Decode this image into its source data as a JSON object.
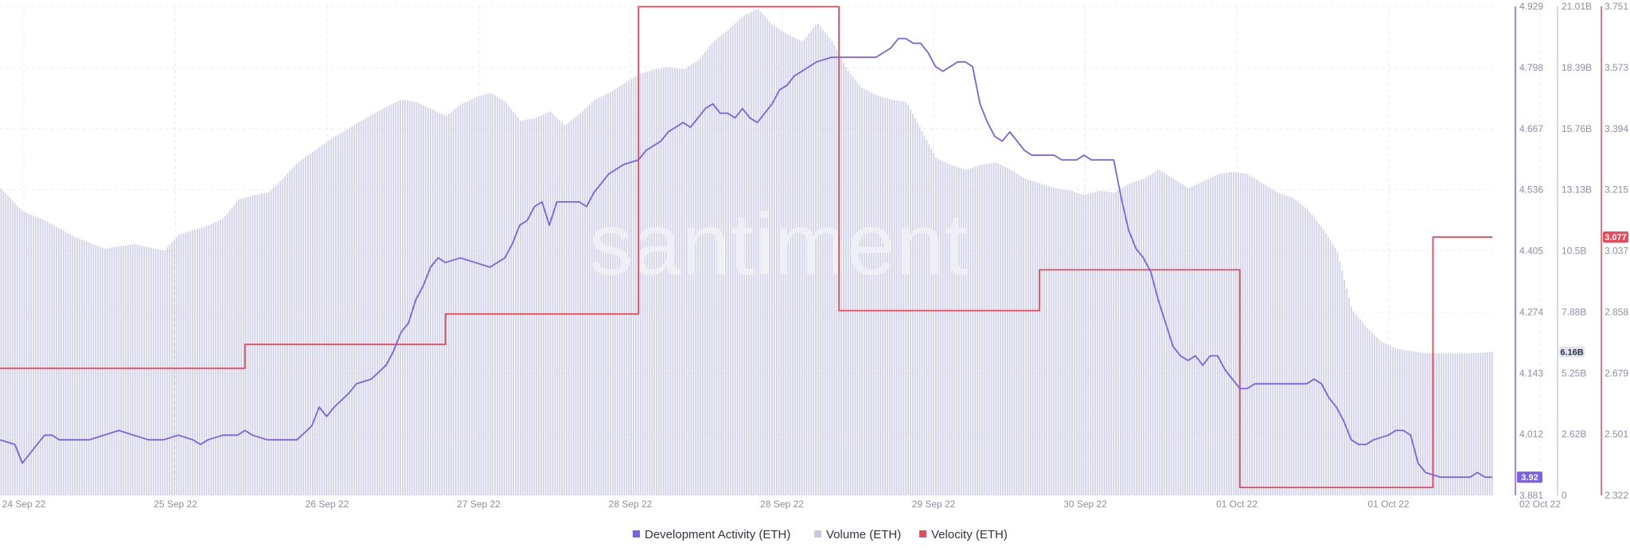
{
  "watermark": "santiment",
  "chart_data": {
    "type": "line",
    "x_labels": [
      "24 Sep 22",
      "25 Sep 22",
      "26 Sep 22",
      "27 Sep 22",
      "28 Sep 22",
      "28 Sep 22",
      "29 Sep 22",
      "30 Sep 22",
      "01 Oct 22",
      "01 Oct 22",
      "02 Oct 22"
    ],
    "axes": {
      "dev": {
        "ticks": [
          "4.929",
          "4.798",
          "4.667",
          "4.536",
          "4.405",
          "4.274",
          "4.143",
          "4.012",
          "3.881"
        ],
        "range": [
          3.881,
          4.929
        ],
        "color": "#7b61e6"
      },
      "volume": {
        "ticks": [
          "21.01B",
          "18.39B",
          "15.76B",
          "13.13B",
          "10.5B",
          "7.88B",
          "5.25B",
          "2.62B",
          "0"
        ],
        "range": [
          0,
          21.01
        ],
        "unit": "B",
        "color": "#c7cae6"
      },
      "velocity": {
        "ticks": [
          "3.751",
          "3.573",
          "3.394",
          "3.215",
          "3.037",
          "2.858",
          "2.679",
          "2.501",
          "2.322"
        ],
        "range": [
          2.322,
          3.751
        ],
        "color": "#e84a57"
      }
    },
    "current_values": {
      "dev": "3.92",
      "volume": "6.16B",
      "velocity": "3.077"
    },
    "series": [
      {
        "name": "Development Activity (ETH)",
        "axis": "dev",
        "color": "#7b61e6",
        "points": [
          [
            0,
            4.0
          ],
          [
            2,
            3.99
          ],
          [
            3,
            3.95
          ],
          [
            4,
            3.97
          ],
          [
            5,
            3.99
          ],
          [
            6,
            4.01
          ],
          [
            7,
            4.01
          ],
          [
            8,
            4.0
          ],
          [
            10,
            4.0
          ],
          [
            12,
            4.0
          ],
          [
            14,
            4.01
          ],
          [
            16,
            4.02
          ],
          [
            18,
            4.01
          ],
          [
            20,
            4.0
          ],
          [
            22,
            4.0
          ],
          [
            24,
            4.01
          ],
          [
            26,
            4.0
          ],
          [
            27,
            3.99
          ],
          [
            28,
            4.0
          ],
          [
            30,
            4.01
          ],
          [
            32,
            4.01
          ],
          [
            33,
            4.02
          ],
          [
            34,
            4.01
          ],
          [
            36,
            4.0
          ],
          [
            38,
            4.0
          ],
          [
            40,
            4.0
          ],
          [
            42,
            4.03
          ],
          [
            43,
            4.07
          ],
          [
            44,
            4.05
          ],
          [
            45,
            4.07
          ],
          [
            47,
            4.1
          ],
          [
            48,
            4.12
          ],
          [
            50,
            4.13
          ],
          [
            52,
            4.16
          ],
          [
            53,
            4.19
          ],
          [
            54,
            4.23
          ],
          [
            55,
            4.25
          ],
          [
            56,
            4.3
          ],
          [
            57,
            4.33
          ],
          [
            58,
            4.37
          ],
          [
            59,
            4.39
          ],
          [
            60,
            4.38
          ],
          [
            62,
            4.39
          ],
          [
            64,
            4.38
          ],
          [
            66,
            4.37
          ],
          [
            67,
            4.38
          ],
          [
            68,
            4.39
          ],
          [
            69,
            4.42
          ],
          [
            70,
            4.46
          ],
          [
            71,
            4.47
          ],
          [
            72,
            4.5
          ],
          [
            73,
            4.51
          ],
          [
            74,
            4.46
          ],
          [
            75,
            4.51
          ],
          [
            76,
            4.51
          ],
          [
            78,
            4.51
          ],
          [
            79,
            4.5
          ],
          [
            80,
            4.53
          ],
          [
            81,
            4.55
          ],
          [
            82,
            4.57
          ],
          [
            83,
            4.58
          ],
          [
            84,
            4.59
          ],
          [
            86,
            4.6
          ],
          [
            87,
            4.62
          ],
          [
            89,
            4.64
          ],
          [
            90,
            4.66
          ],
          [
            92,
            4.68
          ],
          [
            93,
            4.67
          ],
          [
            94,
            4.69
          ],
          [
            95,
            4.71
          ],
          [
            96,
            4.72
          ],
          [
            97,
            4.7
          ],
          [
            98,
            4.7
          ],
          [
            99,
            4.69
          ],
          [
            100,
            4.71
          ],
          [
            101,
            4.69
          ],
          [
            102,
            4.68
          ],
          [
            103,
            4.7
          ],
          [
            104,
            4.72
          ],
          [
            105,
            4.75
          ],
          [
            106,
            4.76
          ],
          [
            107,
            4.78
          ],
          [
            108,
            4.79
          ],
          [
            110,
            4.81
          ],
          [
            112,
            4.82
          ],
          [
            114,
            4.82
          ],
          [
            116,
            4.82
          ],
          [
            118,
            4.82
          ],
          [
            119,
            4.83
          ],
          [
            120,
            4.84
          ],
          [
            121,
            4.86
          ],
          [
            122,
            4.86
          ],
          [
            123,
            4.85
          ],
          [
            124,
            4.85
          ],
          [
            125,
            4.83
          ],
          [
            126,
            4.8
          ],
          [
            127,
            4.79
          ],
          [
            128,
            4.8
          ],
          [
            129,
            4.81
          ],
          [
            130,
            4.81
          ],
          [
            131,
            4.8
          ],
          [
            132,
            4.72
          ],
          [
            133,
            4.68
          ],
          [
            134,
            4.65
          ],
          [
            135,
            4.64
          ],
          [
            136,
            4.66
          ],
          [
            137,
            4.64
          ],
          [
            138,
            4.62
          ],
          [
            139,
            4.61
          ],
          [
            140,
            4.61
          ],
          [
            142,
            4.61
          ],
          [
            143,
            4.6
          ],
          [
            145,
            4.6
          ],
          [
            146,
            4.61
          ],
          [
            147,
            4.6
          ],
          [
            148,
            4.6
          ],
          [
            150,
            4.6
          ],
          [
            151,
            4.52
          ],
          [
            152,
            4.45
          ],
          [
            153,
            4.41
          ],
          [
            154,
            4.39
          ],
          [
            155,
            4.36
          ],
          [
            156,
            4.3
          ],
          [
            157,
            4.25
          ],
          [
            158,
            4.2
          ],
          [
            159,
            4.18
          ],
          [
            160,
            4.17
          ],
          [
            161,
            4.18
          ],
          [
            162,
            4.16
          ],
          [
            163,
            4.18
          ],
          [
            164,
            4.18
          ],
          [
            165,
            4.15
          ],
          [
            166,
            4.13
          ],
          [
            167,
            4.11
          ],
          [
            168,
            4.11
          ],
          [
            169,
            4.12
          ],
          [
            170,
            4.12
          ],
          [
            172,
            4.12
          ],
          [
            174,
            4.12
          ],
          [
            176,
            4.12
          ],
          [
            177,
            4.13
          ],
          [
            178,
            4.12
          ],
          [
            179,
            4.09
          ],
          [
            180,
            4.07
          ],
          [
            181,
            4.04
          ],
          [
            182,
            4.0
          ],
          [
            183,
            3.99
          ],
          [
            184,
            3.99
          ],
          [
            185,
            4.0
          ],
          [
            187,
            4.01
          ],
          [
            188,
            4.02
          ],
          [
            189,
            4.02
          ],
          [
            190,
            4.01
          ],
          [
            191,
            3.95
          ],
          [
            192,
            3.93
          ],
          [
            194,
            3.92
          ],
          [
            196,
            3.92
          ],
          [
            198,
            3.92
          ],
          [
            199,
            3.93
          ],
          [
            200,
            3.92
          ],
          [
            201,
            3.92
          ]
        ]
      },
      {
        "name": "Volume (ETH)",
        "axis": "volume",
        "color": "#c7cae6",
        "points": [
          [
            0,
            13.2
          ],
          [
            3,
            12.2
          ],
          [
            6,
            11.8
          ],
          [
            10,
            11.1
          ],
          [
            14,
            10.6
          ],
          [
            18,
            10.8
          ],
          [
            22,
            10.5
          ],
          [
            24,
            11.2
          ],
          [
            28,
            11.6
          ],
          [
            30,
            11.9
          ],
          [
            32,
            12.7
          ],
          [
            34,
            12.9
          ],
          [
            36,
            13.0
          ],
          [
            38,
            13.6
          ],
          [
            40,
            14.3
          ],
          [
            44,
            15.2
          ],
          [
            48,
            16.0
          ],
          [
            52,
            16.7
          ],
          [
            54,
            17.0
          ],
          [
            56,
            16.9
          ],
          [
            58,
            16.6
          ],
          [
            60,
            16.3
          ],
          [
            62,
            16.8
          ],
          [
            64,
            17.1
          ],
          [
            66,
            17.3
          ],
          [
            68,
            16.9
          ],
          [
            70,
            16.1
          ],
          [
            72,
            16.2
          ],
          [
            74,
            16.5
          ],
          [
            76,
            15.9
          ],
          [
            78,
            16.4
          ],
          [
            80,
            17.0
          ],
          [
            82,
            17.3
          ],
          [
            84,
            17.7
          ],
          [
            86,
            18.1
          ],
          [
            88,
            18.3
          ],
          [
            90,
            18.4
          ],
          [
            92,
            18.3
          ],
          [
            94,
            18.7
          ],
          [
            96,
            19.5
          ],
          [
            98,
            20.0
          ],
          [
            100,
            20.6
          ],
          [
            102,
            20.9
          ],
          [
            104,
            20.2
          ],
          [
            106,
            19.8
          ],
          [
            108,
            19.5
          ],
          [
            110,
            20.3
          ],
          [
            112,
            19.5
          ],
          [
            114,
            18.3
          ],
          [
            116,
            17.5
          ],
          [
            118,
            17.2
          ],
          [
            120,
            17.0
          ],
          [
            122,
            16.9
          ],
          [
            124,
            15.7
          ],
          [
            126,
            14.5
          ],
          [
            128,
            14.2
          ],
          [
            130,
            14.0
          ],
          [
            132,
            14.2
          ],
          [
            134,
            14.3
          ],
          [
            136,
            14.0
          ],
          [
            138,
            13.6
          ],
          [
            140,
            13.4
          ],
          [
            142,
            13.2
          ],
          [
            144,
            13.1
          ],
          [
            146,
            12.9
          ],
          [
            148,
            13.1
          ],
          [
            150,
            13.0
          ],
          [
            152,
            13.4
          ],
          [
            154,
            13.6
          ],
          [
            156,
            14.0
          ],
          [
            158,
            13.6
          ],
          [
            160,
            13.2
          ],
          [
            162,
            13.5
          ],
          [
            164,
            13.8
          ],
          [
            166,
            13.9
          ],
          [
            168,
            13.8
          ],
          [
            170,
            13.4
          ],
          [
            172,
            13.0
          ],
          [
            174,
            12.8
          ],
          [
            176,
            12.3
          ],
          [
            178,
            11.5
          ],
          [
            180,
            10.5
          ],
          [
            182,
            8.0
          ],
          [
            184,
            7.2
          ],
          [
            186,
            6.6
          ],
          [
            188,
            6.3
          ],
          [
            190,
            6.2
          ],
          [
            192,
            6.1
          ],
          [
            195,
            6.1
          ],
          [
            198,
            6.1
          ],
          [
            201,
            6.16
          ]
        ]
      },
      {
        "name": "Velocity (ETH)",
        "axis": "velocity",
        "color": "#e84a57",
        "points": [
          [
            0,
            2.693
          ],
          [
            33,
            2.693
          ],
          [
            33,
            2.763
          ],
          [
            60,
            2.763
          ],
          [
            60,
            2.852
          ],
          [
            86,
            2.852
          ],
          [
            86,
            3.75
          ],
          [
            113,
            3.75
          ],
          [
            113,
            2.862
          ],
          [
            140,
            2.862
          ],
          [
            140,
            2.981
          ],
          [
            167,
            2.981
          ],
          [
            167,
            2.345
          ],
          [
            193,
            2.345
          ],
          [
            193,
            3.077
          ],
          [
            201,
            3.077
          ]
        ]
      }
    ],
    "legend": [
      {
        "label": "Development Activity (ETH)",
        "color": "#7b61e6"
      },
      {
        "label": "Volume (ETH)",
        "color": "#c7cae6"
      },
      {
        "label": "Velocity (ETH)",
        "color": "#e84a57"
      }
    ],
    "legend_position": "bottom-center",
    "grid": true
  }
}
